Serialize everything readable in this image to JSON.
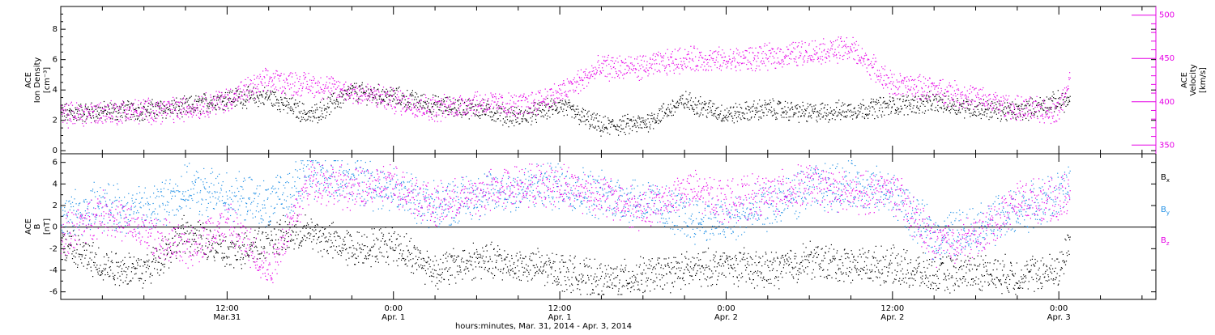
{
  "colors": {
    "black": "#000000",
    "magenta": "#e600e6",
    "blue": "#1f8fe5",
    "axis": "#000000",
    "background": "#ffffff"
  },
  "chart_data": [
    {
      "type": "scatter",
      "ylabel_lines": [
        "ACE",
        "Ion Density",
        "[cm⁻³]"
      ],
      "y2label_lines": [
        "ACE",
        "Velocity",
        "[km/s]"
      ],
      "ylim": [
        -0.2,
        9.5
      ],
      "y_ticks": [
        0,
        2,
        4,
        6,
        8
      ],
      "y_tick_labels": [
        "0",
        "2",
        "4",
        "6",
        "8"
      ],
      "y2lim": [
        340,
        510
      ],
      "y2_ticks": [
        350,
        400,
        450,
        500
      ],
      "y2_tick_labels": [
        "350",
        "400",
        "450",
        "500"
      ],
      "series": [
        {
          "name": "Ion Density",
          "axis": "left",
          "color": "#000000",
          "x_hours": [
            0,
            3,
            6,
            9,
            12,
            15,
            18,
            21,
            24,
            27,
            30,
            33,
            36,
            39,
            42,
            45,
            48,
            51,
            54,
            57,
            60,
            63,
            66,
            69,
            72,
            72.8
          ],
          "y": [
            2.5,
            2.6,
            2.7,
            2.9,
            3.5,
            3.6,
            2.3,
            3.9,
            3.6,
            3.0,
            2.8,
            2.2,
            3.0,
            1.6,
            1.8,
            3.3,
            2.4,
            2.8,
            2.5,
            2.7,
            3.0,
            3.2,
            2.8,
            2.6,
            3.3,
            3.3
          ]
        },
        {
          "name": "Velocity",
          "axis": "right",
          "color": "#e600e6",
          "x_hours": [
            0,
            3,
            6,
            9,
            12,
            15,
            18,
            21,
            24,
            27,
            30,
            33,
            36,
            39,
            42,
            45,
            48,
            51,
            54,
            57,
            60,
            63,
            66,
            69,
            72,
            72.8
          ],
          "y": [
            385,
            388,
            390,
            392,
            403,
            425,
            420,
            412,
            402,
            392,
            400,
            395,
            410,
            440,
            440,
            450,
            448,
            452,
            458,
            462,
            420,
            415,
            405,
            392,
            390,
            432
          ]
        }
      ]
    },
    {
      "type": "scatter",
      "ylabel_lines": [
        "ACE",
        "B",
        "[nT]"
      ],
      "ylim": [
        -6.7,
        6.8
      ],
      "y_ticks": [
        -6,
        -4,
        -2,
        0,
        2,
        4,
        6
      ],
      "y_tick_labels": [
        "-6",
        "-4",
        "-2",
        "0",
        "2",
        "4",
        "6"
      ],
      "zero_line": true,
      "x_ticks_hours": [
        12,
        24,
        36,
        48,
        60,
        72
      ],
      "x_tick_labels": [
        [
          "12:00",
          "Mar.31"
        ],
        [
          "0:00",
          "Apr. 1"
        ],
        [
          "12:00",
          "Apr. 1"
        ],
        [
          "0:00",
          "Apr. 2"
        ],
        [
          "12:00",
          "Apr. 2"
        ],
        [
          "0:00",
          "Apr. 3"
        ]
      ],
      "xlim_hours": [
        0,
        79
      ],
      "xlabel": "hours:minutes, Mar. 31, 2014 - Apr.  3, 2014",
      "series": [
        {
          "name": "B",
          "subscript": "x",
          "color": "#000000",
          "x_hours": [
            0,
            3,
            6,
            9,
            12,
            15,
            18,
            21,
            24,
            27,
            30,
            33,
            36,
            39,
            42,
            45,
            48,
            51,
            54,
            57,
            60,
            63,
            66,
            69,
            72,
            72.8
          ],
          "y": [
            -1.5,
            -3.5,
            -4.0,
            -0.5,
            -2.5,
            -1.0,
            -0.5,
            -2.0,
            -1.5,
            -4.0,
            -3.0,
            -3.5,
            -4.0,
            -5.0,
            -4.5,
            -4.0,
            -3.5,
            -4.0,
            -3.0,
            -3.5,
            -3.5,
            -4.5,
            -4.0,
            -4.5,
            -4.0,
            -1.0
          ]
        },
        {
          "name": "B",
          "subscript": "y",
          "color": "#1f8fe5",
          "x_hours": [
            0,
            3,
            6,
            9,
            12,
            15,
            18,
            21,
            24,
            27,
            30,
            33,
            36,
            39,
            42,
            45,
            48,
            51,
            54,
            57,
            60,
            63,
            66,
            69,
            72,
            72.8
          ],
          "y": [
            1.0,
            2.0,
            1.5,
            3.5,
            3.0,
            2.0,
            5.0,
            4.5,
            3.5,
            2.0,
            3.0,
            3.5,
            4.0,
            3.0,
            2.5,
            1.0,
            0.5,
            2.0,
            3.5,
            4.0,
            3.0,
            -1.0,
            0.0,
            1.5,
            3.0,
            4.0
          ]
        },
        {
          "name": "B",
          "subscript": "z",
          "color": "#e600e6",
          "x_hours": [
            0,
            3,
            6,
            9,
            12,
            15,
            18,
            21,
            24,
            27,
            30,
            33,
            36,
            39,
            42,
            45,
            48,
            51,
            54,
            57,
            60,
            63,
            66,
            69,
            72,
            72.8
          ],
          "y": [
            -1.0,
            1.5,
            -0.5,
            -2.0,
            0.5,
            -4.0,
            4.5,
            3.5,
            4.0,
            2.0,
            3.0,
            4.0,
            4.0,
            3.0,
            1.5,
            3.5,
            2.5,
            3.0,
            4.0,
            3.0,
            3.5,
            -1.5,
            -1.0,
            2.5,
            2.5,
            3.5
          ]
        }
      ]
    }
  ]
}
